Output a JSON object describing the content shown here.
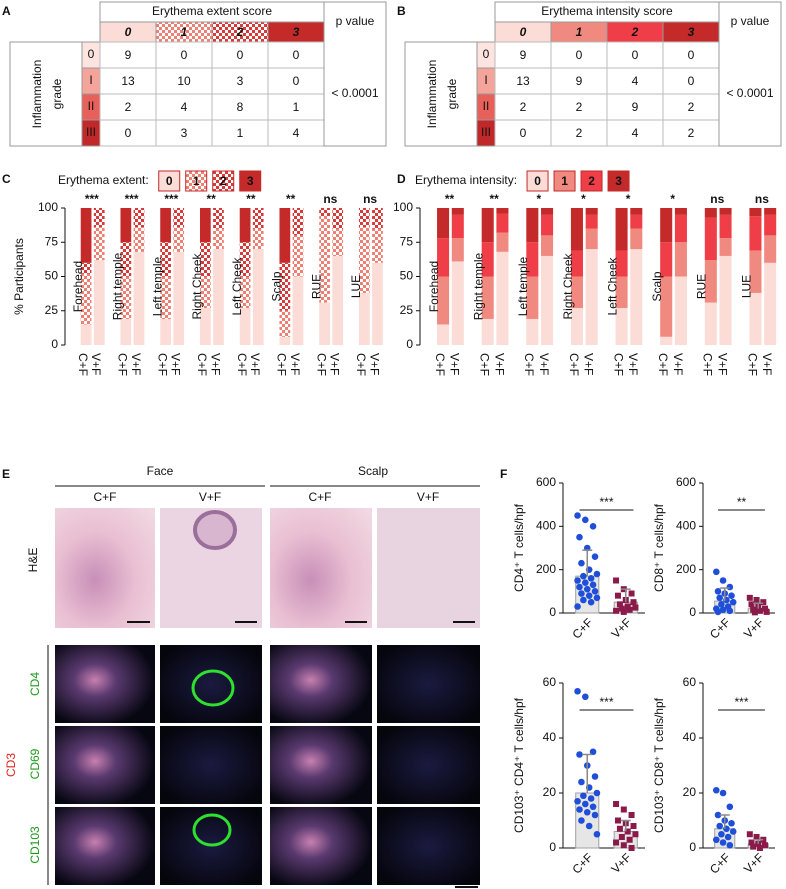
{
  "panel_labels": [
    "A",
    "B",
    "C",
    "D",
    "E",
    "F"
  ],
  "tables": [
    {
      "title": "Erythema extent score",
      "scores": [
        {
          "label": "0",
          "color": "#fbdcd6"
        },
        {
          "label": "1",
          "color": "#ef7f72",
          "pattern": "checker"
        },
        {
          "label": "2",
          "color": "#d83a3a",
          "pattern": "checker"
        },
        {
          "label": "3",
          "color": "#c42a2a"
        }
      ],
      "p_header": "p value",
      "row_header": [
        "Inflammation",
        "grade"
      ],
      "grades": [
        {
          "label": "0",
          "color": "#fde4e0"
        },
        {
          "label": "I",
          "color": "#f4a49a"
        },
        {
          "label": "II",
          "color": "#e8605a"
        },
        {
          "label": "III",
          "color": "#c0282a"
        }
      ],
      "rows": [
        [
          9,
          0,
          0,
          0
        ],
        [
          13,
          10,
          3,
          0
        ],
        [
          2,
          4,
          8,
          1
        ],
        [
          0,
          3,
          1,
          4
        ]
      ],
      "p_value": "< 0.0001"
    },
    {
      "title": "Erythema intensity score",
      "scores": [
        {
          "label": "0",
          "color": "#fbdcd6"
        },
        {
          "label": "1",
          "color": "#f08a80"
        },
        {
          "label": "2",
          "color": "#f03e48"
        },
        {
          "label": "3",
          "color": "#c42a2a"
        }
      ],
      "p_header": "p value",
      "row_header": [
        "Inflammation",
        "grade"
      ],
      "grades": [
        {
          "label": "0",
          "color": "#fde4e0"
        },
        {
          "label": "I",
          "color": "#f4a49a"
        },
        {
          "label": "II",
          "color": "#e8605a"
        },
        {
          "label": "III",
          "color": "#c0282a"
        }
      ],
      "rows": [
        [
          9,
          0,
          0,
          0
        ],
        [
          13,
          9,
          4,
          0
        ],
        [
          2,
          2,
          9,
          2
        ],
        [
          0,
          2,
          4,
          2
        ]
      ],
      "p_value": "< 0.0001"
    }
  ],
  "chart_data": [
    {
      "type": "stacked_bar",
      "title": "Erythema extent:",
      "ylabel": "% Participants",
      "categories": [
        "Forehead",
        "Right temple",
        "Left temple",
        "Right Cheek",
        "Left Cheek",
        "Scalp",
        "RUE",
        "LUE"
      ],
      "groups": [
        "C+F",
        "V+F"
      ],
      "series": [
        {
          "name": "0",
          "color": "#fbdcd6",
          "values": [
            [
              15,
              62
            ],
            [
              19,
              68
            ],
            [
              19,
              68
            ],
            [
              27,
              70
            ],
            [
              27,
              70
            ],
            [
              6,
              50
            ],
            [
              31,
              65
            ],
            [
              38,
              60
            ]
          ]
        },
        {
          "name": "1",
          "color": "#ef7f72",
          "pattern": "checker",
          "values": [
            [
              37,
              24
            ],
            [
              31,
              18
            ],
            [
              31,
              18
            ],
            [
              23,
              15
            ],
            [
              23,
              15
            ],
            [
              19,
              30
            ],
            [
              63,
              20
            ],
            [
              48,
              25
            ]
          ]
        },
        {
          "name": "2",
          "color": "#d83a3a",
          "pattern": "checker",
          "values": [
            [
              8,
              14
            ],
            [
              25,
              14
            ],
            [
              25,
              14
            ],
            [
              25,
              15
            ],
            [
              25,
              15
            ],
            [
              35,
              20
            ],
            [
              6,
              15
            ],
            [
              14,
              15
            ]
          ]
        },
        {
          "name": "3",
          "color": "#c42a2a",
          "values": [
            [
              40,
              0
            ],
            [
              25,
              0
            ],
            [
              25,
              0
            ],
            [
              25,
              0
            ],
            [
              25,
              0
            ],
            [
              40,
              0
            ],
            [
              0,
              0
            ],
            [
              0,
              0
            ]
          ]
        }
      ],
      "annotations": [
        "***",
        "***",
        "***",
        "**",
        "**",
        "**",
        "ns",
        "ns"
      ],
      "ylim": [
        0,
        100
      ],
      "yticks": [
        0,
        25,
        50,
        75,
        100
      ]
    },
    {
      "type": "stacked_bar",
      "title": "Erythema intensity:",
      "categories": [
        "Forehead",
        "Right temple",
        "Left temple",
        "Right Cheek",
        "Left Cheek",
        "Scalp",
        "RUE",
        "LUE"
      ],
      "groups": [
        "C+F",
        "V+F"
      ],
      "series": [
        {
          "name": "0",
          "color": "#fbdcd6",
          "values": [
            [
              15,
              61
            ],
            [
              19,
              68
            ],
            [
              19,
              65
            ],
            [
              27,
              70
            ],
            [
              27,
              70
            ],
            [
              6,
              50
            ],
            [
              31,
              65
            ],
            [
              38,
              60
            ]
          ]
        },
        {
          "name": "1",
          "color": "#f08a80",
          "values": [
            [
              35,
              17
            ],
            [
              31,
              14
            ],
            [
              31,
              15
            ],
            [
              23,
              15
            ],
            [
              23,
              15
            ],
            [
              44,
              25
            ],
            [
              31,
              13
            ],
            [
              31,
              20
            ]
          ]
        },
        {
          "name": "2",
          "color": "#f03e48",
          "values": [
            [
              28,
              17
            ],
            [
              25,
              14
            ],
            [
              25,
              15
            ],
            [
              19,
              10
            ],
            [
              19,
              10
            ],
            [
              25,
              20
            ],
            [
              31,
              17
            ],
            [
              25,
              15
            ]
          ]
        },
        {
          "name": "3",
          "color": "#c42a2a",
          "values": [
            [
              22,
              5
            ],
            [
              25,
              4
            ],
            [
              25,
              5
            ],
            [
              31,
              5
            ],
            [
              31,
              5
            ],
            [
              25,
              5
            ],
            [
              7,
              5
            ],
            [
              6,
              5
            ]
          ]
        }
      ],
      "annotations": [
        "**",
        "**",
        "*",
        "*",
        "*",
        "*",
        "ns",
        "ns"
      ],
      "ylim": [
        0,
        100
      ],
      "yticks": [
        0,
        25,
        50,
        75,
        100
      ]
    },
    {
      "type": "bar_scatter",
      "ylabel": "CD4⁺ T cells/hpf",
      "categories": [
        "C+F",
        "V+F"
      ],
      "values": [
        170,
        50
      ],
      "errors": [
        120,
        60
      ],
      "colors": [
        "#1f4fd8",
        "#8b1a4a"
      ],
      "markers": [
        "circle",
        "square"
      ],
      "points": [
        [
          450,
          430,
          400,
          350,
          300,
          260,
          230,
          200,
          180,
          170,
          160,
          150,
          140,
          130,
          120,
          110,
          100,
          90,
          80,
          70,
          60,
          50,
          30
        ],
        [
          150,
          110,
          90,
          80,
          60,
          50,
          40,
          30,
          25,
          20,
          15,
          10,
          5
        ]
      ],
      "annotation": "***",
      "ylim": [
        0,
        600
      ],
      "yticks": [
        0,
        200,
        400,
        600
      ]
    },
    {
      "type": "bar_scatter",
      "ylabel": "CD8⁺ T cells/hpf",
      "categories": [
        "C+F",
        "V+F"
      ],
      "values": [
        55,
        20
      ],
      "errors": [
        60,
        25
      ],
      "colors": [
        "#1f4fd8",
        "#8b1a4a"
      ],
      "markers": [
        "circle",
        "square"
      ],
      "points": [
        [
          190,
          150,
          120,
          100,
          90,
          80,
          70,
          60,
          50,
          40,
          30,
          20,
          15,
          10,
          5
        ],
        [
          70,
          60,
          50,
          40,
          30,
          20,
          15,
          10,
          5,
          3
        ]
      ],
      "annotation": "**",
      "ylim": [
        0,
        600
      ],
      "yticks": [
        0,
        200,
        400,
        600
      ]
    },
    {
      "type": "bar_scatter",
      "ylabel": "CD103⁺ CD4⁺ T cells/hpf",
      "categories": [
        "C+F",
        "V+F"
      ],
      "values": [
        20,
        6
      ],
      "errors": [
        14,
        4
      ],
      "colors": [
        "#1f4fd8",
        "#8b1a4a"
      ],
      "markers": [
        "circle",
        "square"
      ],
      "points": [
        [
          57,
          55,
          35,
          34,
          30,
          26,
          24,
          22,
          20,
          19,
          18,
          17,
          16,
          15,
          14,
          13,
          12,
          10,
          8,
          5
        ],
        [
          16,
          14,
          12,
          10,
          9,
          8,
          7,
          6,
          5,
          4,
          3,
          2,
          1,
          0
        ]
      ],
      "annotation": "***",
      "ylim": [
        0,
        60
      ],
      "yticks": [
        0,
        20,
        40,
        60
      ]
    },
    {
      "type": "bar_scatter",
      "ylabel": "CD103⁺ CD8⁺ T cells/hpf",
      "categories": [
        "C+F",
        "V+F"
      ],
      "values": [
        7,
        1.5
      ],
      "errors": [
        5,
        1.5
      ],
      "colors": [
        "#1f4fd8",
        "#8b1a4a"
      ],
      "markers": [
        "circle",
        "square"
      ],
      "points": [
        [
          21,
          20,
          15,
          12,
          10,
          9,
          8,
          7,
          6,
          5,
          4,
          3,
          2,
          1
        ],
        [
          5,
          4,
          3,
          2,
          1.5,
          1,
          0.5,
          0
        ]
      ],
      "annotation": "***",
      "ylim": [
        0,
        60
      ],
      "yticks": [
        0,
        20,
        40,
        60
      ]
    }
  ],
  "images": {
    "sites": [
      "Face",
      "Scalp"
    ],
    "groups": [
      "C+F",
      "V+F",
      "C+F",
      "V+F"
    ],
    "stain": "H&E",
    "channel": "CD3",
    "markers": [
      "CD4",
      "CD69",
      "CD103"
    ]
  }
}
